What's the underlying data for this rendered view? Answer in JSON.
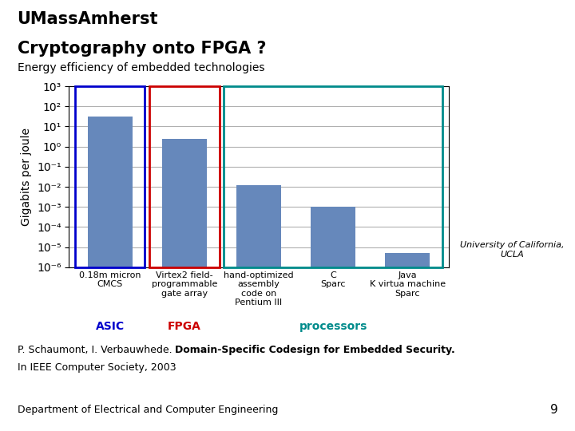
{
  "chart_data": {
    "type": "bar",
    "title": "Cryptography onto FPGA ?",
    "subtitle": "Energy efficiency of embedded technologies",
    "ylabel": "Gigabits per joule",
    "categories": [
      "0.18m micron\nCMCS",
      "Virtex2 field-\nprogrammable\ngate array",
      "hand-optimized\nassembly\ncode on\nPentium III",
      "C\nSparc",
      "Java\nK virtua machine\nSparc"
    ],
    "values": [
      30,
      2.5,
      0.012,
      0.001,
      5e-06
    ],
    "color": "#6688BB",
    "log": "y",
    "ylim": [
      1e-06,
      1000
    ],
    "yticks": [
      {
        "value": 1e-06,
        "label": "10⁻⁶"
      },
      {
        "value": 1e-05,
        "label": "10⁻⁵"
      },
      {
        "value": 0.0001,
        "label": "10⁻⁴"
      },
      {
        "value": 0.001,
        "label": "10⁻³"
      },
      {
        "value": 0.01,
        "label": "10⁻²"
      },
      {
        "value": 0.1,
        "label": "10⁻¹"
      },
      {
        "value": 1,
        "label": "10⁰"
      },
      {
        "value": 10,
        "label": "10¹"
      },
      {
        "value": 100,
        "label": "10²"
      },
      {
        "value": 1000,
        "label": "10³"
      }
    ],
    "grid": true,
    "groups": [
      {
        "name": "ASIC",
        "color": "#0000CC",
        "first": 0,
        "last": 0
      },
      {
        "name": "FPGA",
        "color": "#CC0000",
        "first": 1,
        "last": 1
      },
      {
        "name": "processors",
        "color": "#008B8B",
        "first": 2,
        "last": 4
      }
    ],
    "annotations": [
      "UMassAmherst",
      "P. Schaumont, I. Verbauwhede. ",
      "Domain-Specific Codesign for Embedded Security.",
      "In IEEE Computer Society, 2003",
      "University of California,\nUCLA",
      "Department of Electrical and Computer Engineering",
      "9"
    ]
  }
}
